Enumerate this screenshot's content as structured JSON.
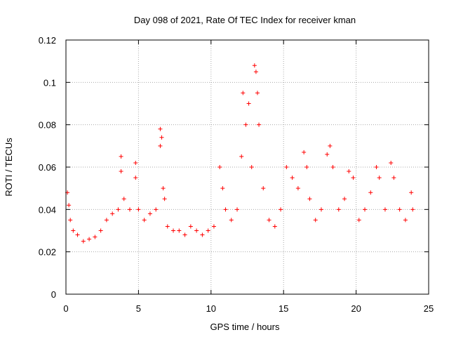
{
  "chart_data": {
    "type": "scatter",
    "title": "Day 098 of 2021, Rate Of TEC Index for receiver kman",
    "xlabel": "GPS time / hours",
    "ylabel": "ROTI / TECUs",
    "xlim": [
      0,
      25
    ],
    "ylim": [
      0,
      0.12
    ],
    "xticks": [
      0,
      5,
      10,
      15,
      20,
      25
    ],
    "yticks": [
      0,
      0.02,
      0.04,
      0.06,
      0.08,
      0.1,
      0.12
    ],
    "xtick_labels": [
      "0",
      "5",
      "10",
      "15",
      "20",
      "25"
    ],
    "ytick_labels": [
      "0",
      "0.02",
      "0.04",
      "0.06",
      "0.08",
      "0.1",
      "0.12"
    ],
    "grid": true,
    "marker": "+",
    "color": "#ff0000",
    "series": [
      {
        "x": [
          0.1,
          0.2,
          0.3,
          0.5,
          0.8,
          1.2,
          1.6,
          2.0,
          2.4,
          2.8,
          3.2,
          3.6,
          3.8,
          3.8,
          4.0,
          4.4,
          4.8,
          4.8,
          5.0,
          5.4,
          5.8,
          6.2,
          6.5,
          6.5,
          6.6,
          6.7,
          6.8,
          7.0,
          7.4,
          7.8,
          8.2,
          8.6,
          9.0,
          9.4,
          9.8,
          10.2,
          10.6,
          10.8,
          11.0,
          11.4,
          11.8,
          12.1,
          12.2,
          12.4,
          12.6,
          12.8,
          13.0,
          13.1,
          13.2,
          13.3,
          13.6,
          14.0,
          14.4,
          14.8,
          15.2,
          15.6,
          16.0,
          16.4,
          16.6,
          16.8,
          17.2,
          17.6,
          18.0,
          18.2,
          18.4,
          18.8,
          19.2,
          19.5,
          19.8,
          20.2,
          20.6,
          21.0,
          21.4,
          21.6,
          22.0,
          22.4,
          22.6,
          23.0,
          23.4,
          23.8,
          23.9
        ],
        "y": [
          0.048,
          0.042,
          0.035,
          0.03,
          0.028,
          0.025,
          0.026,
          0.027,
          0.03,
          0.035,
          0.038,
          0.04,
          0.065,
          0.058,
          0.045,
          0.04,
          0.062,
          0.055,
          0.04,
          0.035,
          0.038,
          0.04,
          0.078,
          0.07,
          0.074,
          0.05,
          0.045,
          0.032,
          0.03,
          0.03,
          0.028,
          0.032,
          0.03,
          0.028,
          0.03,
          0.032,
          0.06,
          0.05,
          0.04,
          0.035,
          0.04,
          0.065,
          0.095,
          0.08,
          0.09,
          0.06,
          0.108,
          0.105,
          0.095,
          0.08,
          0.05,
          0.035,
          0.032,
          0.04,
          0.06,
          0.055,
          0.05,
          0.067,
          0.06,
          0.045,
          0.035,
          0.04,
          0.066,
          0.07,
          0.06,
          0.04,
          0.045,
          0.058,
          0.055,
          0.035,
          0.04,
          0.048,
          0.06,
          0.055,
          0.04,
          0.062,
          0.055,
          0.04,
          0.035,
          0.048,
          0.04
        ]
      }
    ]
  }
}
